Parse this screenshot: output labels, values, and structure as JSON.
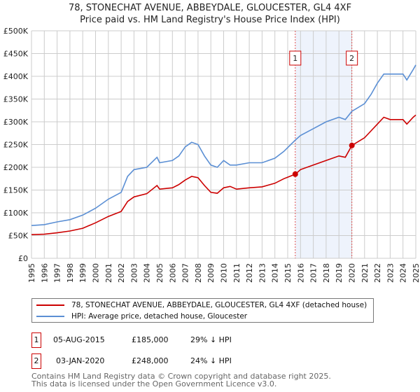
{
  "title": "78, STONECHAT AVENUE, ABBEYDALE, GLOUCESTER, GL4 4XF",
  "subtitle": "Price paid vs. HM Land Registry's House Price Index (HPI)",
  "chart_data": {
    "type": "line",
    "xlim": [
      1995,
      2025
    ],
    "ylim": [
      0,
      500000
    ],
    "x_ticks": [
      "1995",
      "1996",
      "1997",
      "1998",
      "1999",
      "2000",
      "2001",
      "2002",
      "2003",
      "2004",
      "2005",
      "2006",
      "2007",
      "2008",
      "2009",
      "2010",
      "2011",
      "2012",
      "2013",
      "2014",
      "2015",
      "2016",
      "2017",
      "2018",
      "2019",
      "2020",
      "2021",
      "2022",
      "2023",
      "2024",
      "2025"
    ],
    "y_ticks": [
      {
        "v": 0,
        "label": "£0"
      },
      {
        "v": 50000,
        "label": "£50K"
      },
      {
        "v": 100000,
        "label": "£100K"
      },
      {
        "v": 150000,
        "label": "£150K"
      },
      {
        "v": 200000,
        "label": "£200K"
      },
      {
        "v": 250000,
        "label": "£250K"
      },
      {
        "v": 300000,
        "label": "£300K"
      },
      {
        "v": 350000,
        "label": "£350K"
      },
      {
        "v": 400000,
        "label": "£400K"
      },
      {
        "v": 450000,
        "label": "£450K"
      },
      {
        "v": 500000,
        "label": "£500K"
      }
    ],
    "grid": true,
    "shaded_range": [
      2015.6,
      2020.01
    ],
    "series": [
      {
        "name": "78, STONECHAT AVENUE, ABBEYDALE, GLOUCESTER, GL4 4XF (detached house)",
        "color": "#cc0000",
        "x": [
          1995,
          1996,
          1997,
          1998,
          1999,
          2000,
          2001,
          2002,
          2002.5,
          2003,
          2004,
          2004.8,
          2005,
          2006,
          2006.5,
          2007,
          2007.5,
          2008,
          2008.5,
          2009,
          2009.5,
          2010,
          2010.5,
          2011,
          2012,
          2013,
          2014,
          2014.7,
          2015.6,
          2016,
          2017,
          2018,
          2019,
          2019.5,
          2020.01,
          2021,
          2021.5,
          2022,
          2022.5,
          2023,
          2024,
          2024.3,
          2024.8,
          2025
        ],
        "y": [
          52000,
          53000,
          56000,
          60000,
          66000,
          78000,
          92000,
          103000,
          125000,
          135000,
          142000,
          160000,
          152000,
          155000,
          162000,
          172000,
          180000,
          177000,
          160000,
          145000,
          143000,
          155000,
          158000,
          152000,
          155000,
          157000,
          165000,
          175000,
          185000,
          195000,
          205000,
          215000,
          225000,
          222000,
          248000,
          265000,
          280000,
          295000,
          310000,
          305000,
          305000,
          295000,
          310000,
          315000
        ]
      },
      {
        "name": "HPI: Average price, detached house, Gloucester",
        "color": "#5b8fd4",
        "x": [
          1995,
          1996,
          1997,
          1998,
          1999,
          2000,
          2001,
          2002,
          2002.5,
          2003,
          2004,
          2004.8,
          2005,
          2006,
          2006.5,
          2007,
          2007.5,
          2008,
          2008.5,
          2009,
          2009.5,
          2010,
          2010.5,
          2011,
          2012,
          2013,
          2014,
          2014.7,
          2015.6,
          2016,
          2017,
          2018,
          2019,
          2019.5,
          2020.01,
          2021,
          2021.5,
          2022,
          2022.5,
          2023,
          2024,
          2024.3,
          2024.8,
          2025
        ],
        "y": [
          72000,
          74000,
          80000,
          85000,
          95000,
          110000,
          130000,
          145000,
          180000,
          195000,
          200000,
          222000,
          210000,
          215000,
          225000,
          245000,
          255000,
          250000,
          225000,
          205000,
          200000,
          215000,
          205000,
          205000,
          210000,
          210000,
          220000,
          235000,
          260000,
          270000,
          285000,
          300000,
          310000,
          305000,
          323000,
          340000,
          360000,
          385000,
          405000,
          405000,
          405000,
          392000,
          415000,
          425000
        ]
      }
    ],
    "annotations": [
      {
        "label": "1",
        "x": 2015.59,
        "y": 185000
      },
      {
        "label": "2",
        "x": 2020.01,
        "y": 248000
      }
    ]
  },
  "legend": {
    "property": "78, STONECHAT AVENUE, ABBEYDALE, GLOUCESTER, GL4 4XF (detached house)",
    "hpi": "HPI: Average price, detached house, Gloucester"
  },
  "transactions": [
    {
      "num": "1",
      "date": "05-AUG-2015",
      "price": "£185,000",
      "diff": "29% ↓ HPI"
    },
    {
      "num": "2",
      "date": "03-JAN-2020",
      "price": "£248,000",
      "diff": "24% ↓ HPI"
    }
  ],
  "footer": {
    "line1": "Contains HM Land Registry data © Crown copyright and database right 2025.",
    "line2": "This data is licensed under the Open Government Licence v3.0."
  }
}
